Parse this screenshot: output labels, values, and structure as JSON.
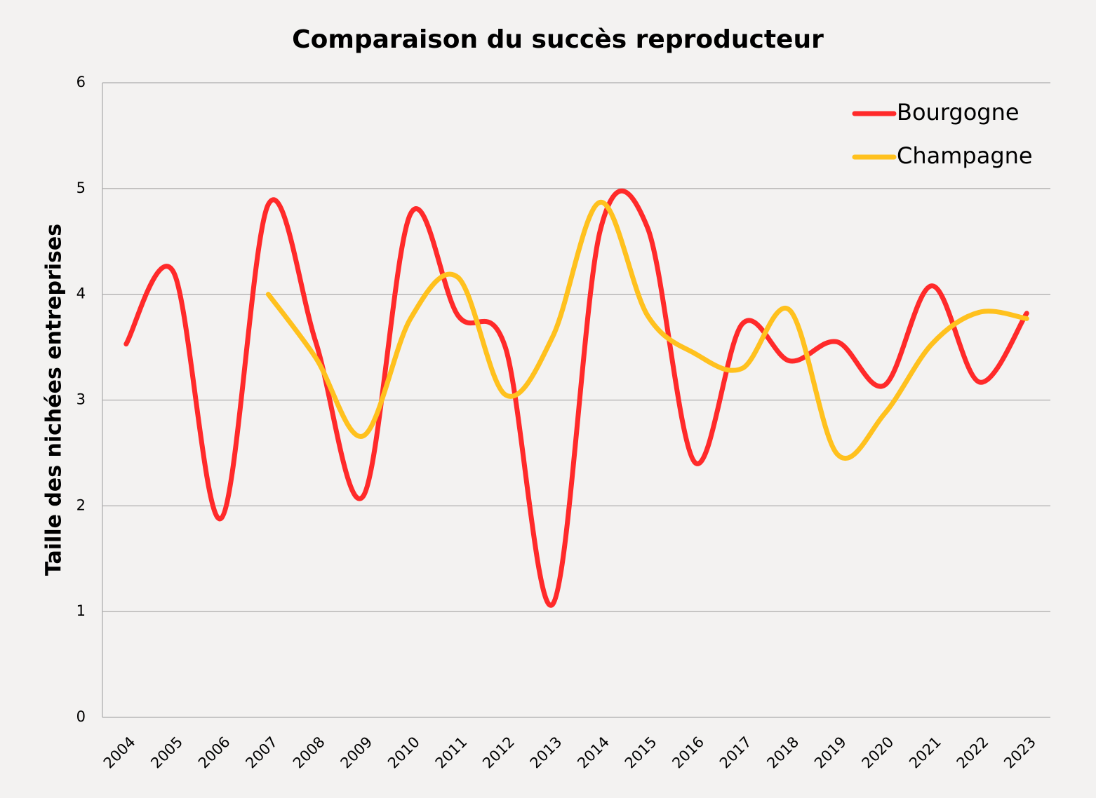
{
  "chart_data": {
    "type": "line",
    "title": "Comparaison du succès reproducteur",
    "y_label": "Taille des nichées entreprises",
    "categories": [
      "2004",
      "2005",
      "2006",
      "2007",
      "2008",
      "2009",
      "2010",
      "2011",
      "2012",
      "2013",
      "2014",
      "2015",
      "2016",
      "2017",
      "2018",
      "2019",
      "2020",
      "2021",
      "2022",
      "2023"
    ],
    "series": [
      {
        "name": "Bourgogne",
        "color": "#ff2a2a",
        "values": [
          3.53,
          4.21,
          1.88,
          4.85,
          3.55,
          2.09,
          4.76,
          3.8,
          3.5,
          1.07,
          4.6,
          4.63,
          2.41,
          3.72,
          3.37,
          3.55,
          3.14,
          4.08,
          3.17,
          3.82
        ]
      },
      {
        "name": "Champagne",
        "color": "#ffc11e",
        "values": [
          null,
          null,
          null,
          4.0,
          3.4,
          2.66,
          3.77,
          4.16,
          3.05,
          3.6,
          4.87,
          3.8,
          3.44,
          3.3,
          3.85,
          2.49,
          2.87,
          3.53,
          3.83,
          3.77
        ]
      }
    ],
    "ylim": [
      0,
      6
    ],
    "yticks": [
      0,
      1,
      2,
      3,
      4,
      5,
      6
    ],
    "grid": true,
    "smooth": true,
    "legend": "upper right"
  }
}
